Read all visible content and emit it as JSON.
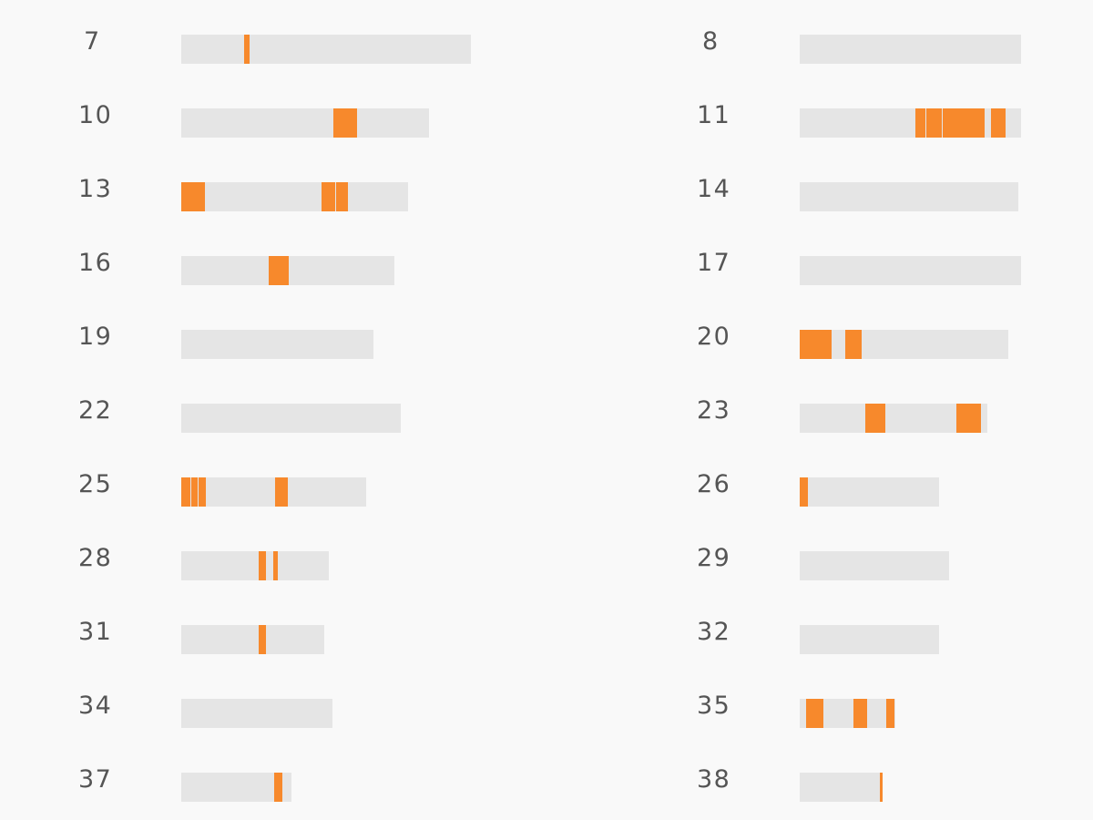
{
  "chart_data": {
    "type": "bar",
    "title": "",
    "xlabel": "",
    "ylabel": "",
    "colors": {
      "track": "#e5e5e5",
      "highlight": "#f7892c",
      "divider": "#fdd5b0",
      "label": "#555555",
      "background": "#f9f9f9"
    },
    "grid": false,
    "legend": "none",
    "rows": [
      {
        "label": "7",
        "length": 318,
        "segments": [
          [
            69,
            75
          ]
        ]
      },
      {
        "label": "8",
        "length": 243,
        "segments": []
      },
      {
        "label": "10",
        "length": 272,
        "segments": [
          [
            167,
            193
          ]
        ]
      },
      {
        "label": "11",
        "length": 243,
        "segments": [
          [
            127,
            138
          ],
          [
            139,
            156
          ],
          [
            157,
            203
          ],
          [
            210,
            226
          ]
        ]
      },
      {
        "label": "13",
        "length": 249,
        "segments": [
          [
            0,
            26
          ],
          [
            154,
            169
          ],
          [
            170,
            183
          ]
        ]
      },
      {
        "label": "14",
        "length": 240,
        "segments": []
      },
      {
        "label": "16",
        "length": 234,
        "segments": [
          [
            96,
            118
          ]
        ]
      },
      {
        "label": "17",
        "length": 243,
        "segments": []
      },
      {
        "label": "19",
        "length": 211,
        "segments": []
      },
      {
        "label": "20",
        "length": 229,
        "segments": [
          [
            0,
            35
          ],
          [
            50,
            68
          ]
        ]
      },
      {
        "label": "22",
        "length": 241,
        "segments": []
      },
      {
        "label": "23",
        "length": 206,
        "segments": [
          [
            72,
            94
          ],
          [
            172,
            199
          ]
        ]
      },
      {
        "label": "25",
        "length": 203,
        "segments": [
          [
            0,
            10
          ],
          [
            11,
            18
          ],
          [
            19,
            27
          ],
          [
            103,
            117
          ]
        ]
      },
      {
        "label": "26",
        "length": 153,
        "segments": [
          [
            0,
            9
          ]
        ]
      },
      {
        "label": "28",
        "length": 162,
        "segments": [
          [
            85,
            93
          ],
          [
            101,
            106
          ]
        ]
      },
      {
        "label": "29",
        "length": 164,
        "segments": []
      },
      {
        "label": "31",
        "length": 157,
        "segments": [
          [
            85,
            93
          ]
        ]
      },
      {
        "label": "32",
        "length": 153,
        "segments": []
      },
      {
        "label": "34",
        "length": 166,
        "segments": []
      },
      {
        "label": "35",
        "length": 105,
        "segments": [
          [
            7,
            26
          ],
          [
            59,
            74
          ],
          [
            95,
            104
          ]
        ]
      },
      {
        "label": "37",
        "length": 121,
        "segments": [
          [
            102,
            111
          ]
        ]
      },
      {
        "label": "38",
        "length": 91,
        "segments": [
          [
            88,
            91
          ]
        ]
      }
    ]
  }
}
